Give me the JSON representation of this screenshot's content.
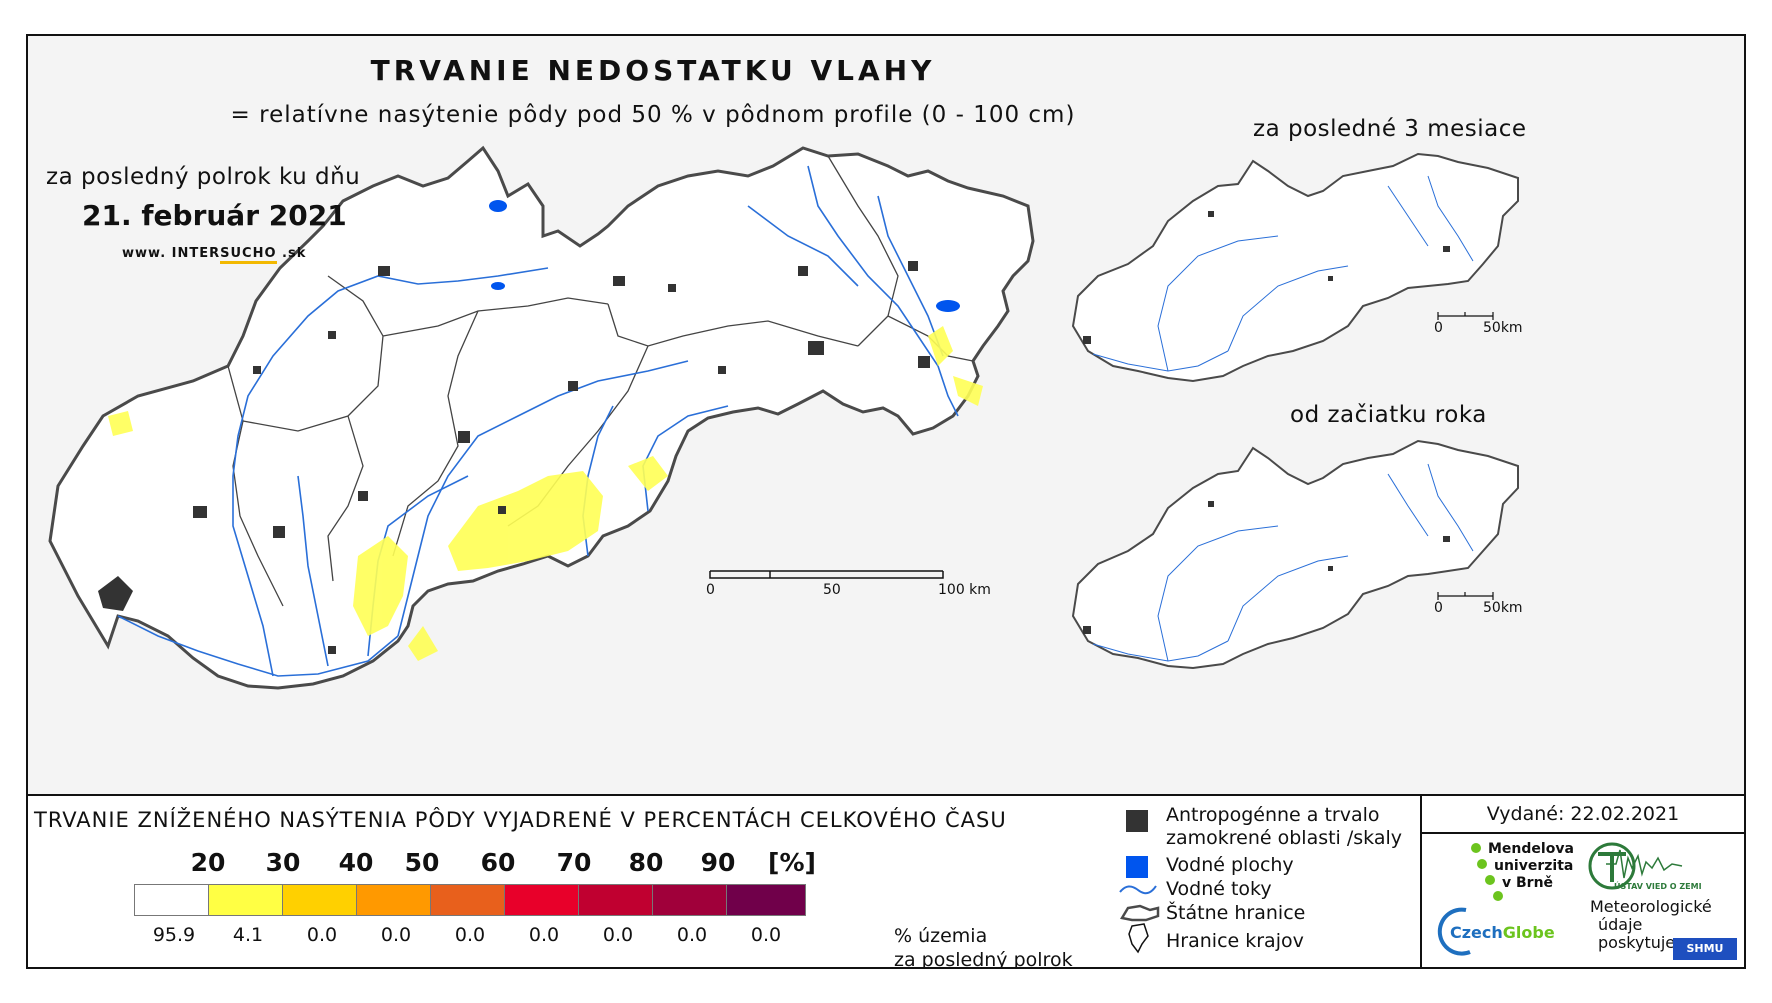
{
  "header": {
    "title": "TRVANIE NEDOSTATKU VLAHY",
    "subtitle": "= relatívne nasýtenie pôdy pod 50 % v pôdnom profile (0 - 100 cm)"
  },
  "main_map": {
    "period": "za posledný polrok ku dňu",
    "date": "21. február 2021",
    "website_prefix": "www. INTER",
    "website_mid": "SUCHO",
    "website_suffix": " .sk",
    "scale_labels": [
      "0",
      "50",
      "100 km"
    ]
  },
  "insets": [
    {
      "label": "za posledné 3 mesiace",
      "scale_labels": [
        "0",
        "50km"
      ]
    },
    {
      "label": "od začiatku roka",
      "scale_labels": [
        "0",
        "50km"
      ]
    }
  ],
  "legend": {
    "title": "TRVANIE ZNÍŽENÉHO NASÝTENIA PÔDY VYJADRENÉ V PERCENTÁCH CELKOVÉHO ČASU",
    "class_labels": [
      "20",
      "30",
      "40",
      "50",
      "60",
      "70",
      "80",
      "90",
      "[%]"
    ],
    "classes": [
      {
        "color": "#ffffff",
        "share": "95.9"
      },
      {
        "color": "#ffff44",
        "share": "4.1"
      },
      {
        "color": "#ffd000",
        "share": "0.0"
      },
      {
        "color": "#ff9900",
        "share": "0.0"
      },
      {
        "color": "#e8601c",
        "share": "0.0"
      },
      {
        "color": "#e8002a",
        "share": "0.0"
      },
      {
        "color": "#c00030",
        "share": "0.0"
      },
      {
        "color": "#a0003a",
        "share": "0.0"
      },
      {
        "color": "#70004a",
        "share": "0.0"
      }
    ],
    "share_note_line1": "% územia",
    "share_note_line2": "za posledný polrok"
  },
  "symbols": {
    "anthropogenic_line1": "Antropogénne a trvalo",
    "anthropogenic_line2": "zamokrené oblasti /skaly",
    "water_bodies": "Vodné plochy",
    "water_streams": "Vodné toky",
    "state_border": "Štátne hranice",
    "region_border": "Hranice krajov",
    "colors": {
      "anthropogenic": "#333333",
      "water": "#0055ee",
      "stream": "#2a6fd8"
    }
  },
  "footer": {
    "issued": "Vydané: 22.02.2021",
    "mendel_line1": "Mendelova",
    "mendel_line2": "univerzita",
    "mendel_line3": "v Brně",
    "ustav": "ÚSTAV VIED O ZEMI",
    "czechglobe_a": "Czech",
    "czechglobe_b": "Globe",
    "meteo_line1": "Meteorologické",
    "meteo_line2": "údaje",
    "meteo_line3": "poskytuje:",
    "shmu": "SHMU"
  }
}
